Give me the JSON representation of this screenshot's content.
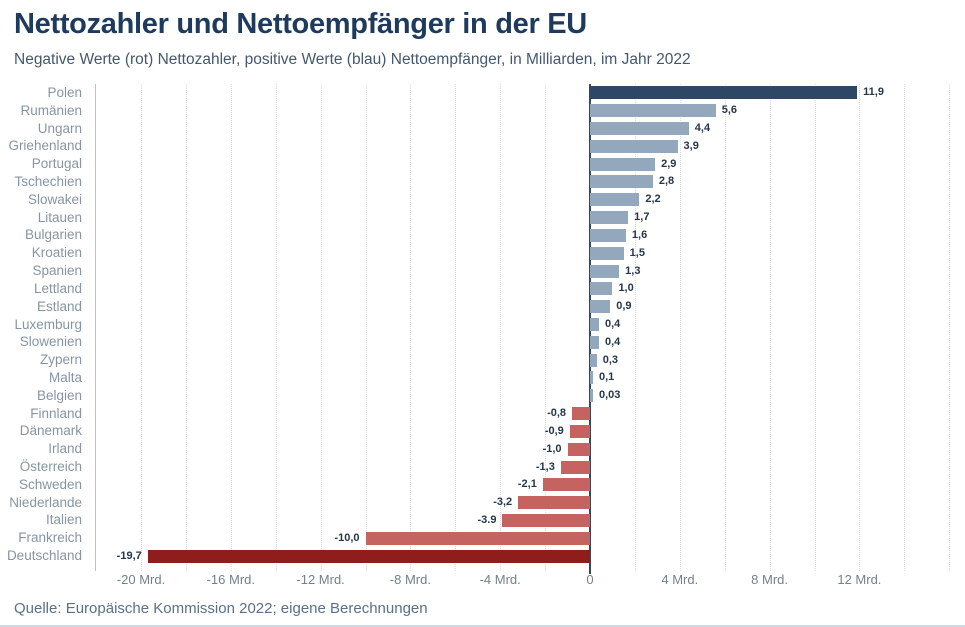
{
  "header": {
    "title": "Nettozahler und Nettoempfänger in der EU",
    "subtitle": "Negative Werte (rot) Nettozahler, positive Werte (blau) Nettoempfänger, in Milliarden, im Jahr 2022"
  },
  "footer": {
    "source": "Quelle: Europäische Kommission 2022; eigene Berechnungen"
  },
  "chart_data": {
    "type": "bar",
    "orientation": "horizontal",
    "title": "Nettozahler und Nettoempfänger in der EU",
    "subtitle": "Negative Werte (rot) Nettozahler, positive Werte (blau) Nettoempfänger, in Milliarden, im Jahr 2022",
    "unit": "Mrd.",
    "year": "2022",
    "xlim": [
      -22.3,
      16.5
    ],
    "grid": {
      "min": -20,
      "max": 16,
      "step": 2,
      "style": "dotted"
    },
    "x_ticks": [
      {
        "value": -20,
        "label": "-20 Mrd."
      },
      {
        "value": -16,
        "label": "-16 Mrd."
      },
      {
        "value": -12,
        "label": "-12 Mrd."
      },
      {
        "value": -8,
        "label": "-8 Mrd."
      },
      {
        "value": -4,
        "label": "-4 Mrd."
      },
      {
        "value": 0,
        "label": "0"
      },
      {
        "value": 4,
        "label": "4 Mrd."
      },
      {
        "value": 8,
        "label": "8 Mrd."
      },
      {
        "value": 12,
        "label": "12 Mrd."
      }
    ],
    "colors": {
      "positive": "#94a8bd",
      "positive_highlight": "#2d4765",
      "negative": "#c46360",
      "negative_highlight": "#8f1d1b"
    },
    "highlighted": [
      "Polen",
      "Deutschland"
    ],
    "countries": [
      {
        "name": "Polen",
        "value": 11.9,
        "label": "11,9"
      },
      {
        "name": "Rumänien",
        "value": 5.6,
        "label": "5,6"
      },
      {
        "name": "Ungarn",
        "value": 4.4,
        "label": "4,4"
      },
      {
        "name": "Griehenland",
        "value": 3.9,
        "label": "3,9"
      },
      {
        "name": "Portugal",
        "value": 2.9,
        "label": "2,9"
      },
      {
        "name": "Tschechien",
        "value": 2.8,
        "label": "2,8"
      },
      {
        "name": "Slowakei",
        "value": 2.2,
        "label": "2,2"
      },
      {
        "name": "Litauen",
        "value": 1.7,
        "label": "1,7"
      },
      {
        "name": "Bulgarien",
        "value": 1.6,
        "label": "1,6"
      },
      {
        "name": "Kroatien",
        "value": 1.5,
        "label": "1,5"
      },
      {
        "name": "Spanien",
        "value": 1.3,
        "label": "1,3"
      },
      {
        "name": "Lettland",
        "value": 1.0,
        "label": "1,0"
      },
      {
        "name": "Estland",
        "value": 0.9,
        "label": "0,9"
      },
      {
        "name": "Luxemburg",
        "value": 0.4,
        "label": "0,4"
      },
      {
        "name": "Slowenien",
        "value": 0.4,
        "label": "0,4"
      },
      {
        "name": "Zypern",
        "value": 0.3,
        "label": "0,3"
      },
      {
        "name": "Malta",
        "value": 0.1,
        "label": "0,1"
      },
      {
        "name": "Belgien",
        "value": 0.03,
        "label": "0,03"
      },
      {
        "name": "Finnland",
        "value": -0.8,
        "label": "-0,8"
      },
      {
        "name": "Dänemark",
        "value": -0.9,
        "label": "-0,9"
      },
      {
        "name": "Irland",
        "value": -1.0,
        "label": "-1,0"
      },
      {
        "name": "Österreich",
        "value": -1.3,
        "label": "-1,3"
      },
      {
        "name": "Schweden",
        "value": -2.1,
        "label": "-2,1"
      },
      {
        "name": "Niederlande",
        "value": -3.2,
        "label": "-3,2"
      },
      {
        "name": "Italien",
        "value": -3.9,
        "label": "-3.9"
      },
      {
        "name": "Frankreich",
        "value": -10.0,
        "label": "-10,0"
      },
      {
        "name": "Deutschland",
        "value": -19.7,
        "label": "-19,7"
      }
    ]
  }
}
